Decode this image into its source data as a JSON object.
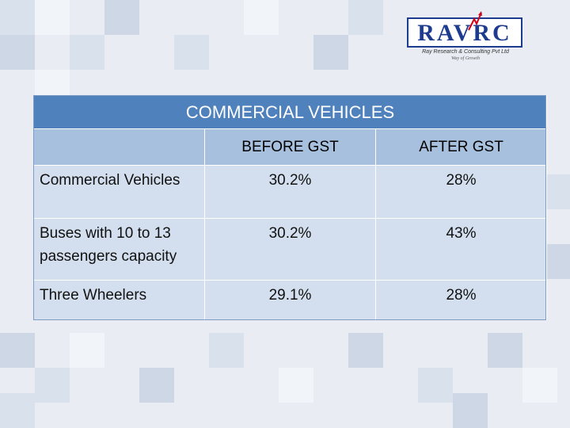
{
  "logo": {
    "brand": "RAVRC",
    "subtitle": "Ray Research & Consulting Pvt Ltd",
    "tagline": "Way of Growth",
    "brand_color": "#1d3b8f",
    "accent_color": "#d0021b"
  },
  "table": {
    "title": "COMMERCIAL VEHICLES",
    "headers": [
      "",
      "BEFORE GST",
      "AFTER GST"
    ],
    "rows": [
      {
        "label": "Commercial Vehicles",
        "before": "30.2%",
        "after": "28%"
      },
      {
        "label": "Buses with 10 to 13 passengers capacity",
        "before": "30.2%",
        "after": "43%"
      },
      {
        "label": "Three Wheelers",
        "before": "29.1%",
        "after": "28%"
      }
    ],
    "header_color": "#4f81bd",
    "subheader_color": "#a7c0de",
    "body_color": "#d3dfee"
  }
}
